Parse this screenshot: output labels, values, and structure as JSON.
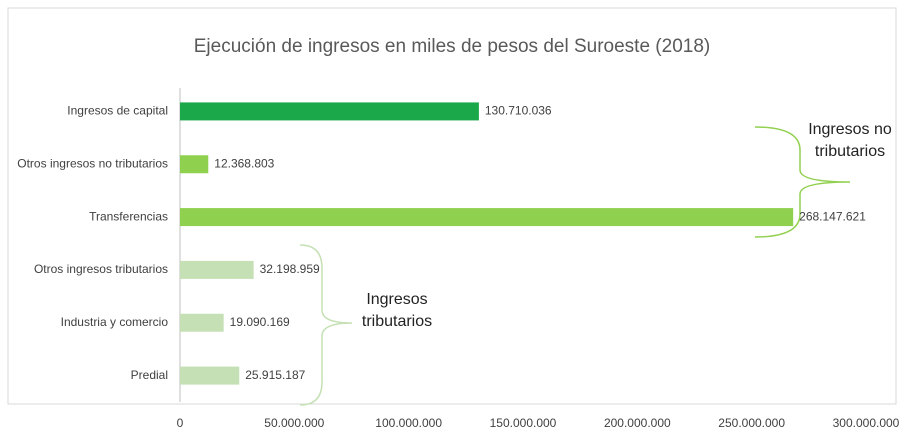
{
  "chart_data": {
    "type": "hbar",
    "title": "Ejecución de ingresos en miles de pesos del Suroeste (2018)",
    "categories": [
      "Ingresos de capital",
      "Otros ingresos no tributarios",
      "Transferencias",
      "Otros ingresos tributarios",
      "Industria y comercio",
      "Predial"
    ],
    "values": [
      130710036,
      12368803,
      268147621,
      32198959,
      19090169,
      25915187
    ],
    "value_labels": [
      "130.710.036",
      "12.368.803",
      "268.147.621",
      "32.198.959",
      "19.090.169",
      "25.915.187"
    ],
    "colors": [
      "#1aa84a",
      "#8fd14f",
      "#8fd14f",
      "#c5e0b4",
      "#c5e0b4",
      "#c5e0b4"
    ],
    "xlim": [
      0,
      300000000
    ],
    "xticks": [
      0,
      {
        "value": 50000000,
        "label": "50.000.000"
      },
      {
        "value": 100000000,
        "label": "100.000.000"
      },
      {
        "value": 150000000,
        "label": "150.000.000"
      },
      {
        "value": 200000000,
        "label": "200.000.000"
      },
      {
        "value": 250000000,
        "label": "250.000.000"
      },
      {
        "value": 300000000,
        "label": "300.000.000"
      }
    ],
    "grid": false,
    "annotations": [
      {
        "lines": [
          "Ingresos no",
          "tributarios"
        ]
      },
      {
        "lines": [
          "Ingresos",
          "tributarios"
        ]
      }
    ]
  }
}
